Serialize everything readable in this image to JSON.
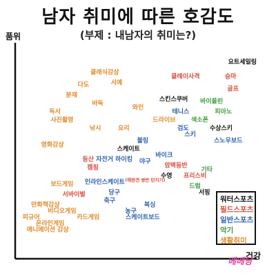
{
  "chart_data": {
    "type": "scatter",
    "title": "남자 취미에 따른 호감도",
    "subtitle": "(부제 : 내남자의 취미는?)",
    "ylabel": "품위",
    "xlabel": "건강",
    "categories": [
      {
        "key": "water",
        "name": "워터스포츠",
        "color": "#111111"
      },
      {
        "key": "field",
        "name": "필드스포츠",
        "color": "#d94a3a"
      },
      {
        "key": "general",
        "name": "일반스포츠",
        "color": "#2b5fb0"
      },
      {
        "key": "instrument",
        "name": "악기",
        "color": "#3a9a3a"
      },
      {
        "key": "life",
        "name": "생활취미",
        "color": "#e08a2a"
      }
    ],
    "points": [
      {
        "label": "요트세일링",
        "cat": "water",
        "x": 9.4,
        "y": 9.4
      },
      {
        "label": "클래식감상",
        "cat": "life",
        "x": 3.6,
        "y": 8.9
      },
      {
        "label": "클레이사격",
        "cat": "field",
        "x": 7.0,
        "y": 8.7
      },
      {
        "label": "승마",
        "cat": "field",
        "x": 8.9,
        "y": 8.7
      },
      {
        "label": "다도",
        "cat": "life",
        "x": 2.7,
        "y": 8.3
      },
      {
        "label": "서예",
        "cat": "life",
        "x": 4.1,
        "y": 8.4
      },
      {
        "label": "골프",
        "cat": "field",
        "x": 9.0,
        "y": 8.1
      },
      {
        "label": "분재",
        "cat": "life",
        "x": 2.2,
        "y": 7.8
      },
      {
        "label": "스킨스쿠버",
        "cat": "water",
        "x": 6.5,
        "y": 7.6
      },
      {
        "label": "바이올린",
        "cat": "instrument",
        "x": 8.1,
        "y": 7.5
      },
      {
        "label": "바둑",
        "cat": "life",
        "x": 3.3,
        "y": 7.4
      },
      {
        "label": "와인",
        "cat": "life",
        "x": 5.0,
        "y": 7.2
      },
      {
        "label": "독서",
        "cat": "life",
        "x": 1.5,
        "y": 7.0
      },
      {
        "label": "테니스",
        "cat": "general",
        "x": 6.8,
        "y": 7.0
      },
      {
        "label": "피아노",
        "cat": "instrument",
        "x": 8.6,
        "y": 7.0
      },
      {
        "label": "사진촬영",
        "cat": "life",
        "x": 1.8,
        "y": 6.6
      },
      {
        "label": "드라이브",
        "cat": "life",
        "x": 6.1,
        "y": 6.6
      },
      {
        "label": "색소폰",
        "cat": "instrument",
        "x": 7.6,
        "y": 6.6
      },
      {
        "label": "낚시",
        "cat": "life",
        "x": 3.2,
        "y": 6.2
      },
      {
        "label": "요리",
        "cat": "life",
        "x": 4.4,
        "y": 6.2
      },
      {
        "label": "검도",
        "cat": "general",
        "x": 6.9,
        "y": 6.2
      },
      {
        "label": "수상스키",
        "cat": "water",
        "x": 8.5,
        "y": 6.2
      },
      {
        "label": "스키",
        "cat": "general",
        "x": 7.2,
        "y": 5.9
      },
      {
        "label": "볼링",
        "cat": "general",
        "x": 5.2,
        "y": 5.6
      },
      {
        "label": "스노우보드",
        "cat": "general",
        "x": 8.8,
        "y": 5.6
      },
      {
        "label": "영화감상",
        "cat": "life",
        "x": 1.4,
        "y": 5.4
      },
      {
        "label": "스케이트",
        "cat": "water",
        "x": 4.6,
        "y": 5.2
      },
      {
        "label": "바이크",
        "cat": "general",
        "x": 6.1,
        "y": 4.9
      },
      {
        "label": "등산",
        "cat": "field",
        "x": 2.9,
        "y": 4.7
      },
      {
        "label": "자전거 하이킹",
        "cat": "general",
        "x": 4.0,
        "y": 4.7
      },
      {
        "label": "야구",
        "cat": "general",
        "x": 5.3,
        "y": 4.6
      },
      {
        "label": "캠핑",
        "cat": "field",
        "x": 3.1,
        "y": 4.3
      },
      {
        "label": "암벽등반",
        "cat": "field",
        "x": 6.6,
        "y": 4.4
      },
      {
        "label": "기타",
        "cat": "instrument",
        "x": 7.9,
        "y": 4.2
      },
      {
        "label": "프리스비",
        "cat": "field",
        "x": 7.4,
        "y": 3.9
      },
      {
        "label": "수영",
        "cat": "water",
        "x": 6.2,
        "y": 3.9
      },
      {
        "label": "(애완견 쌍반 던지기)",
        "cat": "field",
        "x": 5.3,
        "y": 3.7
      },
      {
        "label": "보드게임",
        "cat": "life",
        "x": 1.8,
        "y": 3.5
      },
      {
        "label": "인라인스케이트",
        "cat": "general",
        "x": 3.6,
        "y": 3.6
      },
      {
        "label": "드럼",
        "cat": "instrument",
        "x": 7.4,
        "y": 3.4
      },
      {
        "label": "서핑",
        "cat": "water",
        "x": 7.8,
        "y": 3.1
      },
      {
        "label": "서바이벌",
        "cat": "field",
        "x": 2.3,
        "y": 3.0
      },
      {
        "label": "당구",
        "cat": "general",
        "x": 4.0,
        "y": 3.1
      },
      {
        "label": "축구",
        "cat": "general",
        "x": 3.8,
        "y": 2.7
      },
      {
        "label": "만화책감상",
        "cat": "life",
        "x": 1.1,
        "y": 2.5
      },
      {
        "label": "복싱",
        "cat": "general",
        "x": 5.5,
        "y": 2.5
      },
      {
        "label": "비디오게임",
        "cat": "life",
        "x": 1.8,
        "y": 2.2
      },
      {
        "label": "농구",
        "cat": "general",
        "x": 4.7,
        "y": 2.2
      },
      {
        "label": "피규어",
        "cat": "life",
        "x": 0.5,
        "y": 1.9
      },
      {
        "label": "카드게임",
        "cat": "life",
        "x": 2.9,
        "y": 1.9
      },
      {
        "label": "스케이트보드",
        "cat": "general",
        "x": 5.2,
        "y": 1.9
      },
      {
        "label": "온라인게임",
        "cat": "life",
        "x": 1.3,
        "y": 1.6
      },
      {
        "label": "애니메이션 감상",
        "cat": "life",
        "x": 1.2,
        "y": 1.3
      }
    ],
    "xlim": [
      0,
      10
    ],
    "ylim": [
      0,
      10
    ],
    "legend_position": "bottom-right"
  },
  "watermark": "베베당"
}
